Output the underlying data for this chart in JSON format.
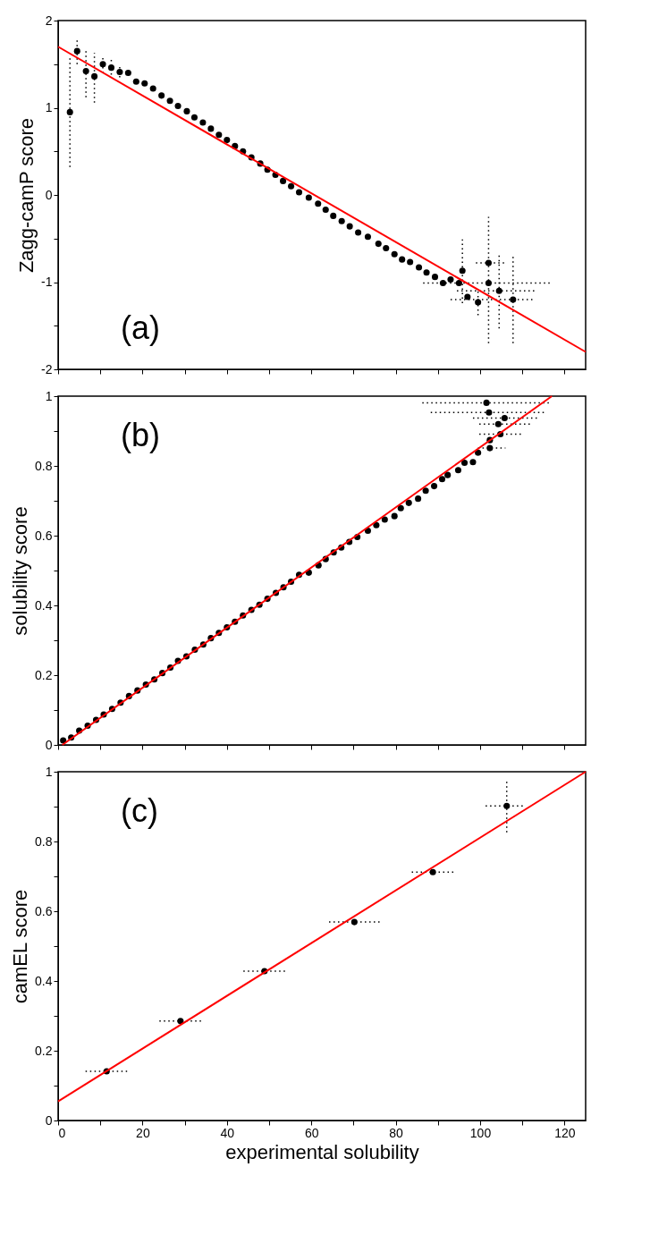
{
  "chart_data": [
    {
      "type": "scatter",
      "ylabel": "Zagg-camP score",
      "xlim": [
        0,
        125
      ],
      "ylim": [
        -2,
        2
      ],
      "xticks": [
        0,
        {
          "value": 10,
          "label": null
        },
        20,
        {
          "value": 30,
          "label": null
        },
        40,
        {
          "value": 50,
          "label": null
        },
        60,
        {
          "value": 70,
          "label": null
        },
        80,
        {
          "value": 90,
          "label": null
        },
        100,
        {
          "value": 110,
          "label": null
        },
        120
      ],
      "yticks": [
        -2,
        {
          "value": -1.5,
          "label": null
        },
        -1,
        {
          "value": -0.5,
          "label": null
        },
        0,
        {
          "value": 0.5,
          "label": null
        },
        1,
        {
          "value": 1.5,
          "label": null
        },
        2
      ],
      "tick_labels": "y",
      "grid": false,
      "annotations": [
        "(a)"
      ],
      "series": [
        {
          "type": "scatter",
          "color": "#000000",
          "marker": "circle",
          "x": [
            2.8,
            4.5,
            6.6,
            8.6,
            10.6,
            12.6,
            14.6,
            16.6,
            18.5,
            20.5,
            22.5,
            24.5,
            26.5,
            28.4,
            30.5,
            32.3,
            34.3,
            36.2,
            38.1,
            40.0,
            41.9,
            43.8,
            45.8,
            47.9,
            49.6,
            51.5,
            53.3,
            55.2,
            57.1,
            59.4,
            61.6,
            63.4,
            65.2,
            67.2,
            69.1,
            71.1,
            73.4,
            75.9,
            77.7,
            79.7,
            81.5,
            83.4,
            85.5,
            87.3,
            89.3,
            91.2,
            93.0,
            95.0,
            95.8,
            97.0,
            99.5,
            102.0,
            102.0,
            104.5,
            107.8
          ],
          "values": [
            0.95,
            1.65,
            1.42,
            1.36,
            1.5,
            1.46,
            1.41,
            1.4,
            1.3,
            1.28,
            1.22,
            1.14,
            1.08,
            1.02,
            0.96,
            0.89,
            0.83,
            0.76,
            0.69,
            0.63,
            0.56,
            0.5,
            0.43,
            0.36,
            0.29,
            0.23,
            0.16,
            0.1,
            0.03,
            -0.03,
            -0.1,
            -0.17,
            -0.24,
            -0.3,
            -0.36,
            -0.43,
            -0.48,
            -0.56,
            -0.61,
            -0.68,
            -0.74,
            -0.77,
            -0.83,
            -0.89,
            -0.94,
            -1.01,
            -0.97,
            -1.01,
            -0.87,
            -1.17,
            -1.23,
            -1.01,
            -0.78,
            -1.1,
            -1.2
          ],
          "errors": [
            [
              0.32,
              1.6
            ],
            [
              1.5,
              1.8
            ],
            [
              1.12,
              1.65
            ],
            [
              1.06,
              1.63
            ],
            [
              1.4,
              1.58
            ],
            [
              1.38,
              1.55
            ],
            [
              1.35,
              1.48
            ],
            null,
            null,
            null,
            null,
            null,
            null,
            null,
            null,
            null,
            null,
            null,
            null,
            null,
            null,
            null,
            null,
            null,
            null,
            null,
            null,
            null,
            null,
            null,
            null,
            null,
            null,
            null,
            null,
            null,
            null,
            null,
            null,
            null,
            null,
            null,
            null,
            null,
            null,
            null,
            null,
            null,
            [
              -1.24,
              -0.51
            ],
            null,
            [
              -1.38,
              -1.1
            ],
            [
              -1.7,
              -0.25
            ],
            null,
            [
              -1.53,
              -0.67
            ],
            [
              -1.7,
              -0.69
            ]
          ],
          "xerrors": [
            null,
            null,
            null,
            null,
            null,
            null,
            null,
            null,
            null,
            null,
            null,
            null,
            null,
            null,
            null,
            null,
            null,
            null,
            null,
            null,
            null,
            null,
            null,
            null,
            null,
            null,
            null,
            null,
            null,
            null,
            null,
            null,
            null,
            null,
            null,
            null,
            null,
            null,
            null,
            null,
            null,
            null,
            null,
            null,
            null,
            null,
            null,
            null,
            null,
            null,
            null,
            [
              86.5,
              117
            ],
            [
              99,
              106
            ],
            [
              94.5,
              113
            ],
            [
              93,
              113
            ]
          ]
        },
        {
          "type": "line",
          "color": "#ff0000",
          "x": [
            0,
            125
          ],
          "values": [
            1.7,
            -1.8
          ]
        }
      ]
    },
    {
      "type": "scatter",
      "ylabel": "solubility score",
      "xlim": [
        0,
        125
      ],
      "ylim": [
        0,
        1
      ],
      "xticks": [
        0,
        {
          "value": 10,
          "label": null
        },
        20,
        {
          "value": 30,
          "label": null
        },
        40,
        {
          "value": 50,
          "label": null
        },
        60,
        {
          "value": 70,
          "label": null
        },
        80,
        {
          "value": 90,
          "label": null
        },
        100,
        {
          "value": 110,
          "label": null
        },
        120
      ],
      "yticks": [
        0,
        {
          "value": 0.1,
          "label": null
        },
        0.2,
        {
          "value": 0.3,
          "label": null
        },
        0.4,
        {
          "value": 0.5,
          "label": null
        },
        0.6,
        {
          "value": 0.7,
          "label": null
        },
        0.8,
        {
          "value": 0.9,
          "label": null
        },
        1
      ],
      "tick_labels": "y",
      "grid": false,
      "annotations": [
        "(b)"
      ],
      "series": [
        {
          "type": "scatter",
          "color": "#000000",
          "marker": "circle",
          "x": [
            1.2,
            3.1,
            5.0,
            7.0,
            9.0,
            10.8,
            12.8,
            14.8,
            16.8,
            18.8,
            20.8,
            22.8,
            24.7,
            26.6,
            28.4,
            30.4,
            32.4,
            34.4,
            36.2,
            38.1,
            40.0,
            41.9,
            43.8,
            45.8,
            47.7,
            49.6,
            51.6,
            53.4,
            55.2,
            57.1,
            59.4,
            61.7,
            63.4,
            65.3,
            67.1,
            69.0,
            70.9,
            73.4,
            75.4,
            77.4,
            79.7,
            81.2,
            83.1,
            85.3,
            87.1,
            89.1,
            91.0,
            92.3,
            94.8,
            96.3,
            98.3,
            99.5,
            102.3,
            102.3,
            104.8,
            104.3,
            105.8,
            102.1,
            101.5
          ],
          "values": [
            0.013,
            0.021,
            0.041,
            0.055,
            0.072,
            0.087,
            0.103,
            0.121,
            0.14,
            0.156,
            0.173,
            0.188,
            0.206,
            0.222,
            0.241,
            0.254,
            0.273,
            0.288,
            0.306,
            0.321,
            0.337,
            0.353,
            0.371,
            0.387,
            0.402,
            0.419,
            0.436,
            0.452,
            0.468,
            0.488,
            0.494,
            0.515,
            0.533,
            0.552,
            0.566,
            0.582,
            0.596,
            0.614,
            0.63,
            0.646,
            0.656,
            0.679,
            0.694,
            0.706,
            0.729,
            0.742,
            0.762,
            0.774,
            0.788,
            0.809,
            0.811,
            0.838,
            0.851,
            0.874,
            0.891,
            0.92,
            0.937,
            0.953,
            0.981
          ],
          "xerrors": [
            null,
            null,
            null,
            null,
            null,
            null,
            null,
            null,
            null,
            null,
            null,
            null,
            null,
            null,
            null,
            null,
            null,
            null,
            null,
            null,
            null,
            null,
            null,
            null,
            null,
            null,
            null,
            null,
            null,
            null,
            null,
            null,
            null,
            null,
            null,
            null,
            null,
            null,
            null,
            null,
            null,
            null,
            null,
            null,
            null,
            null,
            null,
            null,
            null,
            null,
            null,
            null,
            [
              99.5,
              106
            ],
            null,
            [
              99.8,
              109.8
            ],
            [
              99.8,
              112.3
            ],
            [
              98.3,
              113.8
            ],
            [
              88.3,
              115.8
            ],
            [
              86.3,
              116.8
            ]
          ]
        },
        {
          "type": "line",
          "color": "#ff0000",
          "x": [
            1,
            117
          ],
          "values": [
            0,
            1
          ]
        }
      ]
    },
    {
      "type": "scatter",
      "xlabel": "experimental solubility",
      "ylabel": "camEL score",
      "xlim": [
        0,
        125
      ],
      "ylim": [
        0,
        1
      ],
      "xticks": [
        0,
        {
          "value": 10,
          "label": null
        },
        20,
        {
          "value": 30,
          "label": null
        },
        40,
        {
          "value": 50,
          "label": null
        },
        60,
        {
          "value": 70,
          "label": null
        },
        80,
        {
          "value": 90,
          "label": null
        },
        100,
        {
          "value": 110,
          "label": null
        },
        120
      ],
      "yticks": [
        0,
        {
          "value": 0.1,
          "label": null
        },
        0.2,
        {
          "value": 0.3,
          "label": null
        },
        0.4,
        {
          "value": 0.5,
          "label": null
        },
        0.6,
        {
          "value": 0.7,
          "label": null
        },
        0.8,
        {
          "value": 0.9,
          "label": null
        },
        1
      ],
      "grid": false,
      "annotations": [
        "(c)"
      ],
      "series": [
        {
          "type": "scatter",
          "color": "#000000",
          "marker": "circle",
          "x": [
            11.5,
            29.0,
            48.9,
            70.2,
            88.8,
            106.3
          ],
          "values": [
            0.141,
            0.285,
            0.428,
            0.569,
            0.712,
            0.902
          ],
          "errors": [
            null,
            null,
            null,
            null,
            null,
            [
              0.826,
              0.974
            ]
          ],
          "xerrors": [
            [
              6.5,
              16.5
            ],
            [
              24.0,
              33.9
            ],
            [
              43.9,
              53.9
            ],
            [
              64.2,
              76.3
            ],
            [
              83.8,
              93.8
            ],
            [
              101.3,
              110.3
            ]
          ]
        },
        {
          "type": "line",
          "color": "#ff0000",
          "x": [
            0,
            125
          ],
          "values": [
            0.055,
            1.0
          ]
        }
      ]
    }
  ]
}
